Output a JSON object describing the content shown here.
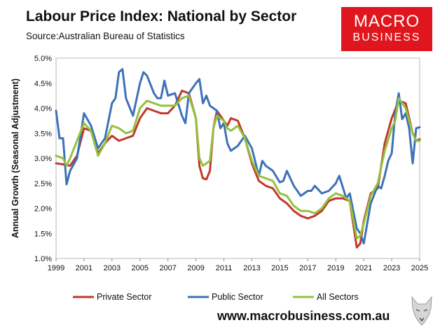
{
  "header": {
    "title": "Labour Price Index: National by Sector",
    "source": "Source:Australian Bureau of Statistics"
  },
  "logo": {
    "line1": "MACRO",
    "line2": "BUSINESS"
  },
  "footer": {
    "url": "www.macrobusiness.com.au"
  },
  "colors": {
    "private": "#c0392b",
    "public": "#3d72b8",
    "all": "#94c13d",
    "brand": "#e0161e"
  },
  "chart_data": {
    "type": "line",
    "title": "Labour Price Index: National by Sector",
    "xlabel": "",
    "ylabel": "Annual Growth (Seasonal Adjustment)",
    "xlim": [
      1999,
      2025
    ],
    "ylim": [
      1.0,
      5.0
    ],
    "x_ticks": [
      1999,
      2001,
      2003,
      2005,
      2007,
      2009,
      2011,
      2013,
      2015,
      2017,
      2019,
      2021,
      2023,
      2025
    ],
    "y_ticks": [
      "1.0%",
      "1.5%",
      "2.0%",
      "2.5%",
      "3.0%",
      "3.5%",
      "4.0%",
      "4.5%",
      "5.0%"
    ],
    "legend_position": "bottom",
    "grid": false,
    "series": [
      {
        "name": "Private Sector",
        "color": "#c0392b",
        "points": [
          [
            1999.0,
            2.9
          ],
          [
            1999.5,
            2.88
          ],
          [
            2000.0,
            2.85
          ],
          [
            2000.5,
            3.05
          ],
          [
            2001.0,
            3.6
          ],
          [
            2001.5,
            3.55
          ],
          [
            2002.0,
            3.1
          ],
          [
            2002.5,
            3.3
          ],
          [
            2003.0,
            3.45
          ],
          [
            2003.5,
            3.35
          ],
          [
            2004.0,
            3.4
          ],
          [
            2004.5,
            3.45
          ],
          [
            2005.0,
            3.8
          ],
          [
            2005.5,
            4.0
          ],
          [
            2006.0,
            3.95
          ],
          [
            2006.5,
            3.9
          ],
          [
            2007.0,
            3.9
          ],
          [
            2007.5,
            4.05
          ],
          [
            2008.0,
            4.35
          ],
          [
            2008.5,
            4.3
          ],
          [
            2009.0,
            3.8
          ],
          [
            2009.25,
            2.85
          ],
          [
            2009.5,
            2.6
          ],
          [
            2009.75,
            2.58
          ],
          [
            2010.0,
            2.75
          ],
          [
            2010.25,
            3.6
          ],
          [
            2010.5,
            3.95
          ],
          [
            2010.75,
            3.85
          ],
          [
            2011.0,
            3.75
          ],
          [
            2011.25,
            3.65
          ],
          [
            2011.5,
            3.8
          ],
          [
            2012.0,
            3.75
          ],
          [
            2012.5,
            3.4
          ],
          [
            2013.0,
            2.9
          ],
          [
            2013.5,
            2.55
          ],
          [
            2014.0,
            2.45
          ],
          [
            2014.5,
            2.4
          ],
          [
            2015.0,
            2.2
          ],
          [
            2015.5,
            2.1
          ],
          [
            2016.0,
            1.95
          ],
          [
            2016.5,
            1.85
          ],
          [
            2017.0,
            1.8
          ],
          [
            2017.5,
            1.85
          ],
          [
            2018.0,
            1.95
          ],
          [
            2018.5,
            2.15
          ],
          [
            2019.0,
            2.2
          ],
          [
            2019.5,
            2.2
          ],
          [
            2020.0,
            2.15
          ],
          [
            2020.5,
            1.22
          ],
          [
            2020.75,
            1.3
          ],
          [
            2021.0,
            1.75
          ],
          [
            2021.5,
            2.3
          ],
          [
            2022.0,
            2.4
          ],
          [
            2022.5,
            3.3
          ],
          [
            2023.0,
            3.8
          ],
          [
            2023.5,
            4.15
          ],
          [
            2024.0,
            4.1
          ],
          [
            2024.5,
            3.5
          ],
          [
            2024.75,
            3.35
          ],
          [
            2025.0,
            3.38
          ]
        ]
      },
      {
        "name": "Public Sector",
        "color": "#3d72b8",
        "points": [
          [
            1999.0,
            3.95
          ],
          [
            1999.25,
            3.4
          ],
          [
            1999.5,
            3.4
          ],
          [
            1999.75,
            2.48
          ],
          [
            2000.0,
            2.75
          ],
          [
            2000.5,
            3.0
          ],
          [
            2001.0,
            3.9
          ],
          [
            2001.5,
            3.65
          ],
          [
            2002.0,
            3.2
          ],
          [
            2002.5,
            3.4
          ],
          [
            2003.0,
            4.1
          ],
          [
            2003.25,
            4.2
          ],
          [
            2003.5,
            4.72
          ],
          [
            2003.75,
            4.78
          ],
          [
            2004.0,
            4.2
          ],
          [
            2004.5,
            3.85
          ],
          [
            2005.0,
            4.5
          ],
          [
            2005.25,
            4.72
          ],
          [
            2005.5,
            4.65
          ],
          [
            2006.0,
            4.3
          ],
          [
            2006.25,
            4.2
          ],
          [
            2006.5,
            4.2
          ],
          [
            2006.75,
            4.55
          ],
          [
            2007.0,
            4.25
          ],
          [
            2007.5,
            4.3
          ],
          [
            2008.0,
            3.85
          ],
          [
            2008.25,
            3.7
          ],
          [
            2008.5,
            4.3
          ],
          [
            2009.0,
            4.5
          ],
          [
            2009.25,
            4.58
          ],
          [
            2009.5,
            4.1
          ],
          [
            2009.75,
            4.25
          ],
          [
            2010.0,
            4.05
          ],
          [
            2010.5,
            3.95
          ],
          [
            2010.75,
            3.6
          ],
          [
            2011.0,
            3.7
          ],
          [
            2011.25,
            3.3
          ],
          [
            2011.5,
            3.15
          ],
          [
            2012.0,
            3.25
          ],
          [
            2012.5,
            3.45
          ],
          [
            2013.0,
            3.2
          ],
          [
            2013.5,
            2.65
          ],
          [
            2013.75,
            2.95
          ],
          [
            2014.0,
            2.85
          ],
          [
            2014.5,
            2.75
          ],
          [
            2015.0,
            2.52
          ],
          [
            2015.25,
            2.55
          ],
          [
            2015.5,
            2.75
          ],
          [
            2016.0,
            2.45
          ],
          [
            2016.5,
            2.25
          ],
          [
            2017.0,
            2.35
          ],
          [
            2017.25,
            2.35
          ],
          [
            2017.5,
            2.45
          ],
          [
            2018.0,
            2.3
          ],
          [
            2018.5,
            2.35
          ],
          [
            2019.0,
            2.5
          ],
          [
            2019.25,
            2.65
          ],
          [
            2019.75,
            2.2
          ],
          [
            2020.0,
            2.3
          ],
          [
            2020.5,
            1.6
          ],
          [
            2020.75,
            1.5
          ],
          [
            2021.0,
            1.3
          ],
          [
            2021.5,
            2.1
          ],
          [
            2022.0,
            2.45
          ],
          [
            2022.25,
            2.4
          ],
          [
            2022.5,
            2.65
          ],
          [
            2022.75,
            2.95
          ],
          [
            2023.0,
            3.1
          ],
          [
            2023.25,
            3.9
          ],
          [
            2023.5,
            4.3
          ],
          [
            2023.75,
            3.78
          ],
          [
            2024.0,
            3.9
          ],
          [
            2024.25,
            3.6
          ],
          [
            2024.5,
            2.9
          ],
          [
            2024.75,
            3.6
          ],
          [
            2025.0,
            3.62
          ]
        ]
      },
      {
        "name": "All Sectors",
        "color": "#94c13d",
        "points": [
          [
            1999.0,
            3.05
          ],
          [
            1999.5,
            3.0
          ],
          [
            1999.75,
            2.85
          ],
          [
            2000.0,
            3.0
          ],
          [
            2000.5,
            3.35
          ],
          [
            2001.0,
            3.7
          ],
          [
            2001.5,
            3.55
          ],
          [
            2002.0,
            3.05
          ],
          [
            2002.5,
            3.3
          ],
          [
            2003.0,
            3.65
          ],
          [
            2003.5,
            3.6
          ],
          [
            2004.0,
            3.5
          ],
          [
            2004.5,
            3.55
          ],
          [
            2005.0,
            4.0
          ],
          [
            2005.5,
            4.15
          ],
          [
            2006.0,
            4.1
          ],
          [
            2006.5,
            4.05
          ],
          [
            2007.0,
            4.05
          ],
          [
            2007.5,
            4.05
          ],
          [
            2008.0,
            4.2
          ],
          [
            2008.5,
            4.25
          ],
          [
            2009.0,
            3.8
          ],
          [
            2009.25,
            3.0
          ],
          [
            2009.5,
            2.85
          ],
          [
            2009.75,
            2.9
          ],
          [
            2010.0,
            2.95
          ],
          [
            2010.25,
            3.6
          ],
          [
            2010.5,
            3.85
          ],
          [
            2010.75,
            3.8
          ],
          [
            2011.0,
            3.75
          ],
          [
            2011.25,
            3.6
          ],
          [
            2011.5,
            3.55
          ],
          [
            2012.0,
            3.65
          ],
          [
            2012.5,
            3.4
          ],
          [
            2013.0,
            2.95
          ],
          [
            2013.5,
            2.65
          ],
          [
            2014.0,
            2.6
          ],
          [
            2014.5,
            2.55
          ],
          [
            2015.0,
            2.3
          ],
          [
            2015.5,
            2.25
          ],
          [
            2016.0,
            2.05
          ],
          [
            2016.5,
            1.95
          ],
          [
            2017.0,
            1.95
          ],
          [
            2017.5,
            1.9
          ],
          [
            2018.0,
            2.0
          ],
          [
            2018.5,
            2.2
          ],
          [
            2019.0,
            2.3
          ],
          [
            2019.5,
            2.25
          ],
          [
            2020.0,
            2.15
          ],
          [
            2020.5,
            1.4
          ],
          [
            2020.75,
            1.45
          ],
          [
            2021.0,
            1.7
          ],
          [
            2021.5,
            2.25
          ],
          [
            2022.0,
            2.5
          ],
          [
            2022.5,
            3.15
          ],
          [
            2023.0,
            3.6
          ],
          [
            2023.25,
            3.75
          ],
          [
            2023.5,
            4.2
          ],
          [
            2024.0,
            4.0
          ],
          [
            2024.5,
            3.5
          ],
          [
            2024.75,
            3.35
          ],
          [
            2025.0,
            3.35
          ]
        ]
      }
    ]
  }
}
